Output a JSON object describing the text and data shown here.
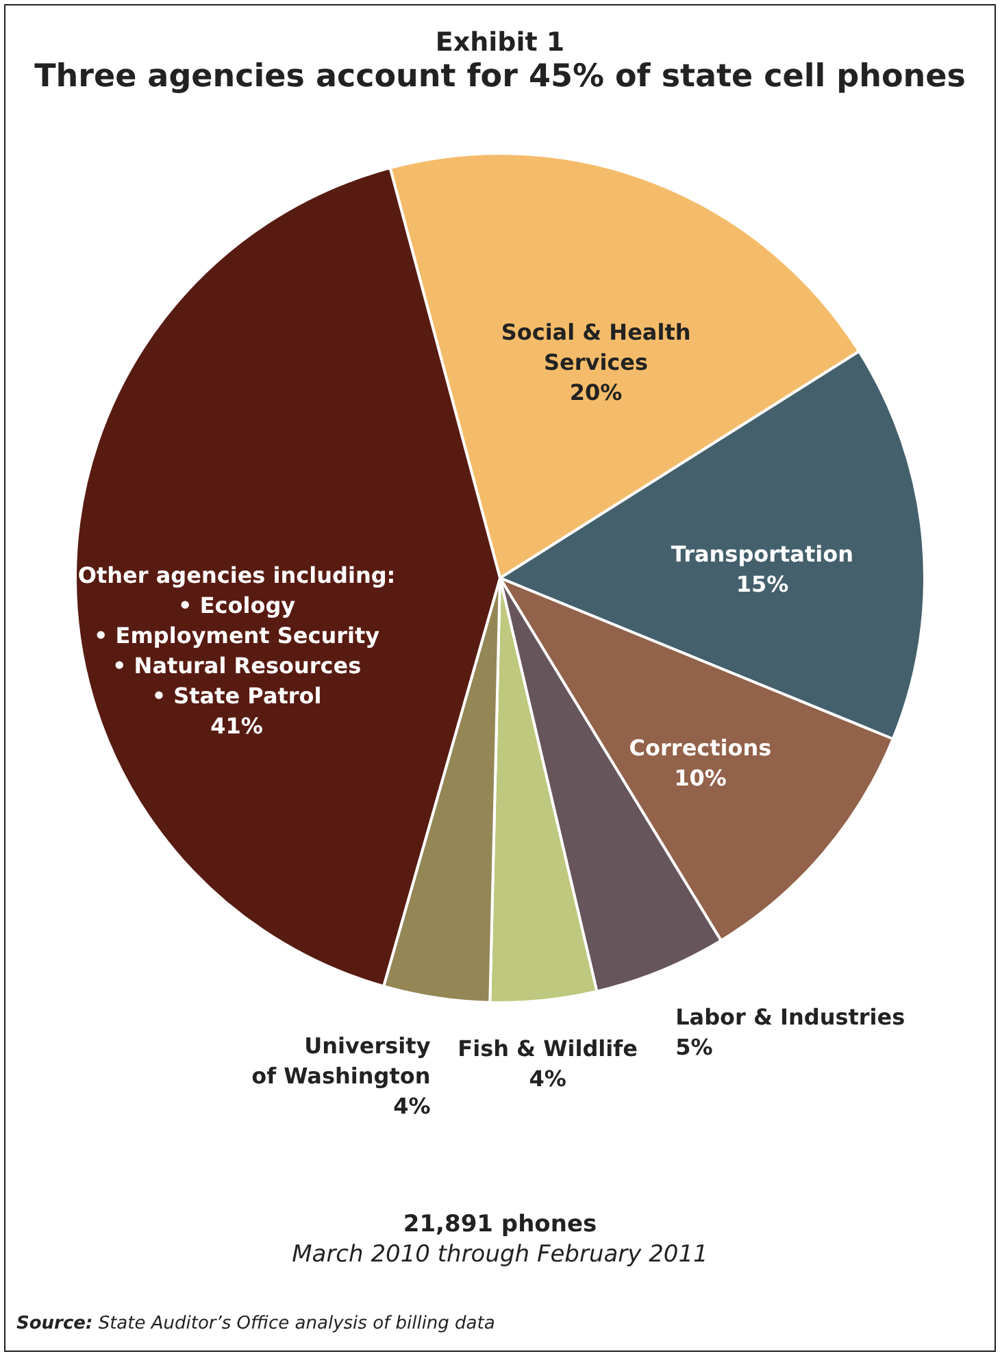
{
  "chart_data": {
    "type": "pie",
    "title": "Exhibit 1",
    "subtitle": "Three agencies account for 45% of state cell phones",
    "categories": [
      "Social & Health\nServices",
      "Transportation",
      "Corrections",
      "Labor & Industries",
      "Fish & Wildlife",
      "University\nof Washington",
      "Other agencies including:\n• Ecology\n• Employment Security\n• Natural Resources\n• State Patrol"
    ],
    "values": [
      20,
      15,
      10,
      5,
      4,
      4,
      41
    ],
    "value_labels": [
      "20%",
      "15%",
      "10%",
      "5%",
      "4%",
      "4%",
      "41%"
    ],
    "colors": [
      "#f4bc6a",
      "#44606c",
      "#93624a",
      "#67555c",
      "#bec87e",
      "#958656",
      "#581b12"
    ],
    "annotations": [
      "21,891 phones",
      "March 2010 through February 2011",
      "Source: State Auditor’s Office analysis of billing data"
    ]
  }
}
